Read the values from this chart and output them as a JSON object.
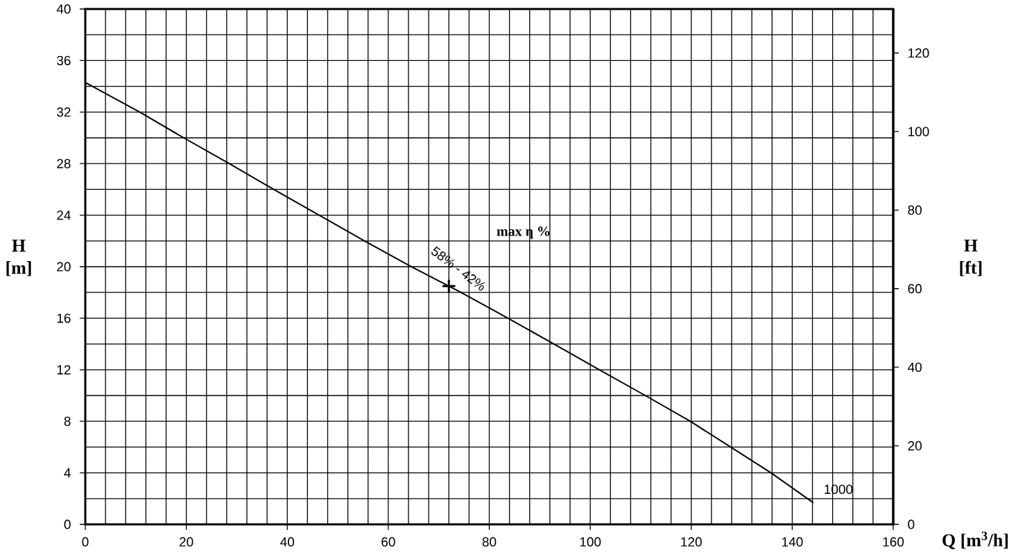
{
  "chart_data": {
    "type": "line",
    "xlabel": "Q [m$^{3}$/h]",
    "ylabel": "H [m]",
    "y2label": "H [ft]",
    "xlim": [
      0,
      160
    ],
    "ylim": [
      0,
      40
    ],
    "y2lim": [
      0,
      131.2
    ],
    "xticks": [
      0,
      {
        "value": 4,
        "label": null
      },
      {
        "value": 8,
        "label": null
      },
      {
        "value": 12,
        "label": null
      },
      {
        "value": 16,
        "label": null
      },
      20,
      {
        "value": 24,
        "label": null
      },
      {
        "value": 28,
        "label": null
      },
      {
        "value": 32,
        "label": null
      },
      {
        "value": 36,
        "label": null
      },
      40,
      {
        "value": 44,
        "label": null
      },
      {
        "value": 48,
        "label": null
      },
      {
        "value": 52,
        "label": null
      },
      {
        "value": 56,
        "label": null
      },
      60,
      {
        "value": 64,
        "label": null
      },
      {
        "value": 68,
        "label": null
      },
      {
        "value": 72,
        "label": null
      },
      {
        "value": 76,
        "label": null
      },
      80,
      {
        "value": 84,
        "label": null
      },
      {
        "value": 88,
        "label": null
      },
      {
        "value": 92,
        "label": null
      },
      {
        "value": 96,
        "label": null
      },
      100,
      {
        "value": 104,
        "label": null
      },
      {
        "value": 108,
        "label": null
      },
      {
        "value": 112,
        "label": null
      },
      {
        "value": 116,
        "label": null
      },
      120,
      {
        "value": 124,
        "label": null
      },
      {
        "value": 128,
        "label": null
      },
      {
        "value": 132,
        "label": null
      },
      {
        "value": 136,
        "label": null
      },
      140,
      {
        "value": 144,
        "label": null
      },
      {
        "value": 148,
        "label": null
      },
      {
        "value": 152,
        "label": null
      },
      {
        "value": 156,
        "label": null
      },
      160
    ],
    "yticks": [
      0,
      {
        "value": 2,
        "label": null
      },
      4,
      {
        "value": 6,
        "label": null
      },
      8,
      {
        "value": 10,
        "label": null
      },
      12,
      {
        "value": 14,
        "label": null
      },
      16,
      {
        "value": 18,
        "label": null
      },
      20,
      {
        "value": 22,
        "label": null
      },
      24,
      {
        "value": 26,
        "label": null
      },
      28,
      {
        "value": 30,
        "label": null
      },
      32,
      {
        "value": 34,
        "label": null
      },
      36,
      {
        "value": 38,
        "label": null
      },
      40
    ],
    "y2ticks": [
      0,
      20,
      40,
      60,
      80,
      100,
      120
    ],
    "grid": true,
    "series": [
      {
        "name": "1000",
        "color": "#000000",
        "marker": "none",
        "line_style": "solid",
        "x": [
          0,
          10.8,
          19.5,
          28.5,
          37.3,
          46.3,
          55.3,
          64.6,
          74.4,
          83.7,
          92.8,
          101.8,
          110.9,
          119.8,
          127.8,
          135.8,
          144.1
        ],
        "values": [
          34.3,
          32,
          30,
          28,
          26,
          24,
          22,
          20,
          18,
          16,
          14,
          12,
          10,
          8,
          6,
          4,
          1.7
        ]
      },
      {
        "type": "scatter",
        "color": "#000000",
        "marker": "cross",
        "x": [
          72
        ],
        "values": [
          18.5
        ]
      }
    ],
    "annotations": [
      "max η %",
      {
        "text": "58% - 42%",
        "x": 72,
        "y": 18.5
      }
    ]
  }
}
